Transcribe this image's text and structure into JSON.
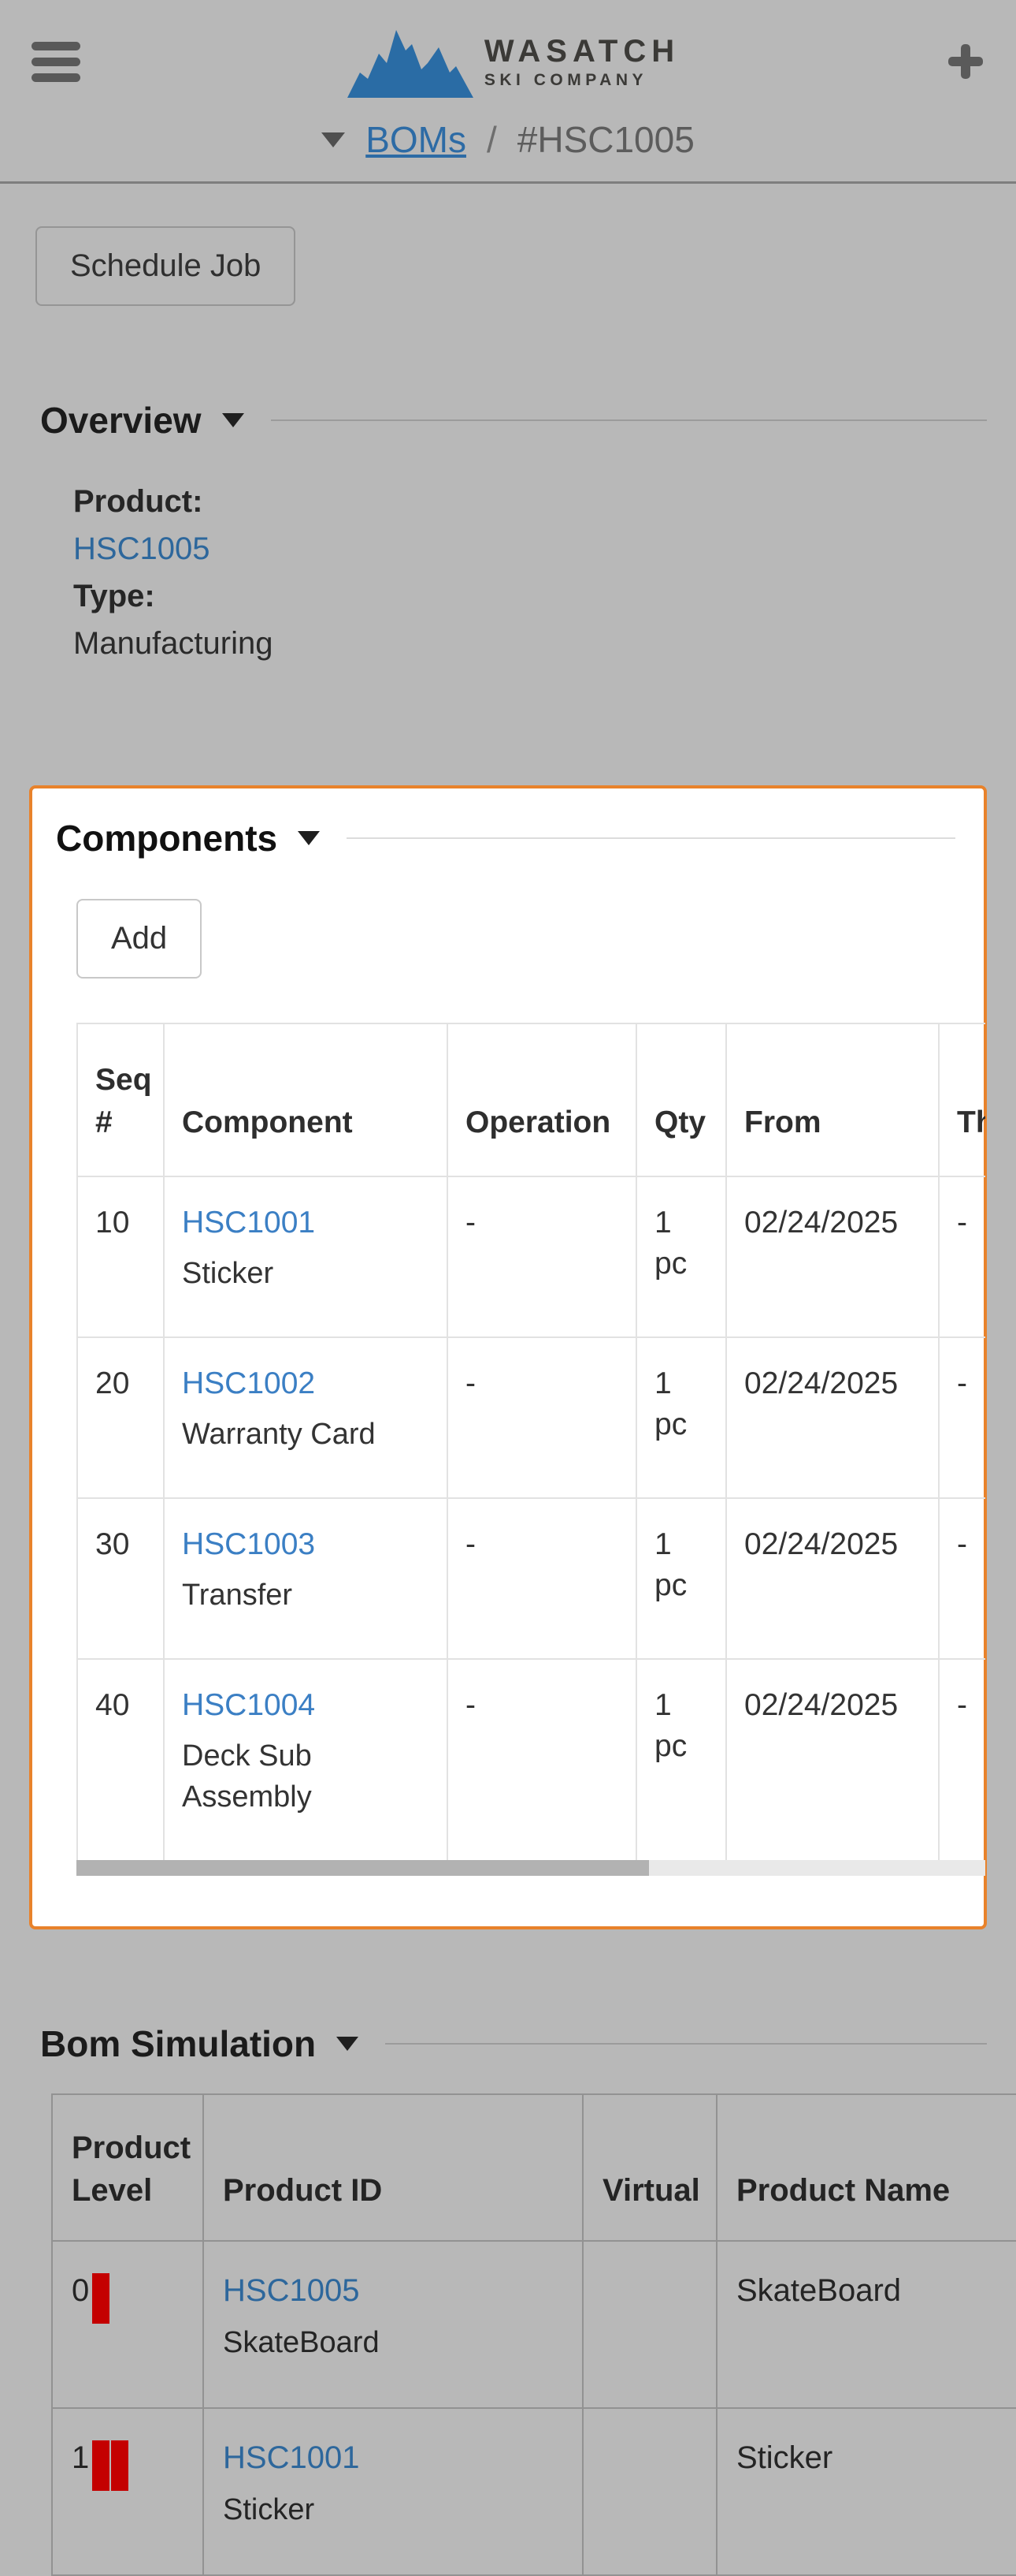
{
  "header": {
    "brand_line1": "WASATCH",
    "brand_line2": "SKI COMPANY"
  },
  "breadcrumb": {
    "section": "BOMs",
    "separator": "/",
    "current": "#HSC1005"
  },
  "actions": {
    "schedule_job_label": "Schedule Job"
  },
  "overview": {
    "title": "Overview",
    "product_label": "Product:",
    "product_value": "HSC1005",
    "type_label": "Type:",
    "type_value": "Manufacturing"
  },
  "components": {
    "title": "Components",
    "add_label": "Add",
    "table": {
      "headers": {
        "seq": "Seq #",
        "component": "Component",
        "operation": "Operation",
        "qty": "Qty",
        "from": "From",
        "thru": "Thru Date"
      },
      "rows": [
        {
          "seq": "10",
          "id": "HSC1001",
          "name": "Sticker",
          "operation": "-",
          "qty": "1 pc",
          "from": "02/24/2025",
          "thru": "-"
        },
        {
          "seq": "20",
          "id": "HSC1002",
          "name": "Warranty Card",
          "operation": "-",
          "qty": "1 pc",
          "from": "02/24/2025",
          "thru": "-"
        },
        {
          "seq": "30",
          "id": "HSC1003",
          "name": "Transfer",
          "operation": "-",
          "qty": "1 pc",
          "from": "02/24/2025",
          "thru": "-"
        },
        {
          "seq": "40",
          "id": "HSC1004",
          "name": "Deck Sub Assembly",
          "operation": "-",
          "qty": "1 pc",
          "from": "02/24/2025",
          "thru": "-"
        }
      ]
    }
  },
  "bom_simulation": {
    "title": "Bom Simulation",
    "table": {
      "headers": {
        "level": "Product Level",
        "product_id": "Product ID",
        "virtual": "Virtual",
        "product_name": "Product Name"
      },
      "rows": [
        {
          "level": "0",
          "depth": 1,
          "id": "HSC1005",
          "sub": "SkateBoard",
          "virtual": "",
          "product_name": "SkateBoard"
        },
        {
          "level": "1",
          "depth": 2,
          "id": "HSC1001",
          "sub": "Sticker",
          "virtual": "",
          "product_name": "Sticker"
        }
      ]
    }
  },
  "colors": {
    "page_dim_background": "#b8b8b8",
    "highlight_border": "#e8822b",
    "link_blue": "#3b7fc4",
    "dimmed_link_blue": "#2d679c",
    "level_indicator_red": "#c40000",
    "icon_gray": "#595959"
  }
}
